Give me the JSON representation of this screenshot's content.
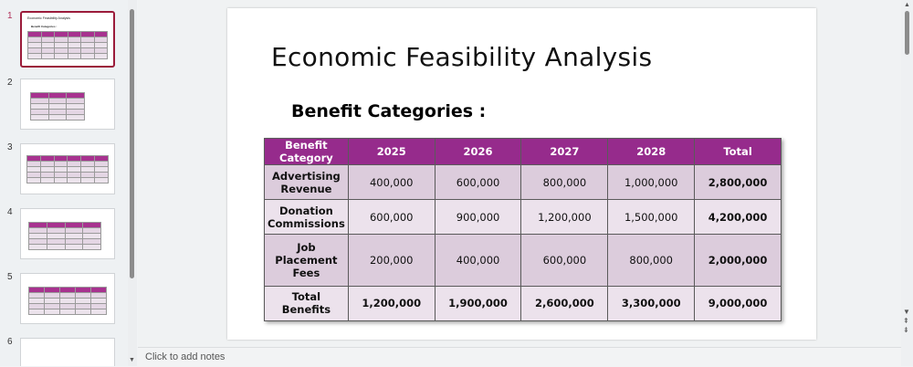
{
  "thumbnails": [
    {
      "number": "1",
      "active": true
    },
    {
      "number": "2",
      "active": false
    },
    {
      "number": "3",
      "active": false
    },
    {
      "number": "4",
      "active": false
    },
    {
      "number": "5",
      "active": false
    },
    {
      "number": "6",
      "active": false
    }
  ],
  "slide": {
    "title": "Economic Feasibility Analysis",
    "subtitle": "Benefit Categories :",
    "table": {
      "header": [
        "Benefit Category",
        "2025",
        "2026",
        "2027",
        "2028",
        "Total"
      ],
      "rows": [
        [
          "Advertising Revenue",
          "400,000",
          "600,000",
          "800,000",
          "1,000,000",
          "2,800,000"
        ],
        [
          "Donation Commissions",
          "600,000",
          "900,000",
          "1,200,000",
          "1,500,000",
          "4,200,000"
        ],
        [
          "Job Placement Fees",
          "200,000",
          "400,000",
          "600,000",
          "800,000",
          "2,000,000"
        ],
        [
          "Total Benefits",
          "1,200,000",
          "1,900,000",
          "2,600,000",
          "3,300,000",
          "9,000,000"
        ]
      ]
    }
  },
  "notes_placeholder": "Click to add notes",
  "colors": {
    "table_header": "#962b8c",
    "row_dark": "#dcccdc",
    "row_light": "#ece2ec",
    "active_thumb_border": "#9b1b3a"
  }
}
